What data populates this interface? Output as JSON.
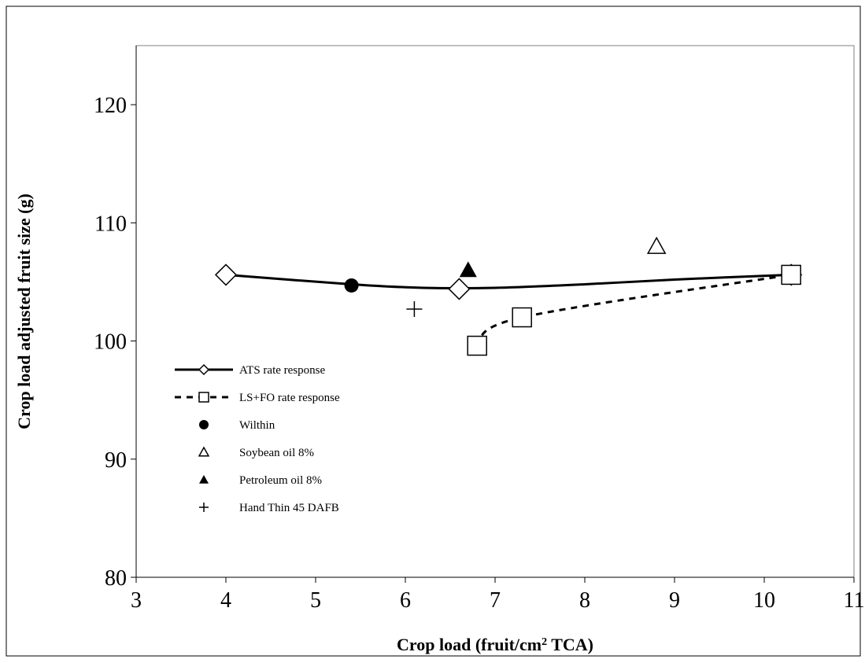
{
  "chart_data": {
    "type": "scatter",
    "title": "",
    "xlabel": "Crop load (fruit/cm",
    "xlabel_sup": "2",
    "xlabel_tail": " TCA)",
    "ylabel": "Crop load adjusted fruit size (g)",
    "xlim": [
      3,
      11
    ],
    "ylim": [
      80,
      125
    ],
    "x_ticks": [
      3,
      4,
      5,
      6,
      7,
      8,
      9,
      10,
      11
    ],
    "y_ticks": [
      80,
      90,
      100,
      110,
      120
    ],
    "grid": false,
    "legend_position": "left",
    "series": [
      {
        "name": "ATS rate response",
        "marker": "diamond-open",
        "line": "solid",
        "points": [
          {
            "x": 4.0,
            "y": 105.6
          },
          {
            "x": 6.6,
            "y": 104.4
          },
          {
            "x": 10.3,
            "y": 105.6
          }
        ],
        "curve": [
          {
            "x": 4.0,
            "y": 105.6
          },
          {
            "x": 5.4,
            "y": 104.8
          },
          {
            "x": 6.2,
            "y": 104.5
          },
          {
            "x": 7.0,
            "y": 104.5
          },
          {
            "x": 8.0,
            "y": 104.8
          },
          {
            "x": 9.0,
            "y": 105.2
          },
          {
            "x": 10.3,
            "y": 105.6
          }
        ]
      },
      {
        "name": "LS+FO rate response",
        "marker": "square-open",
        "line": "dashed",
        "points": [
          {
            "x": 6.8,
            "y": 99.6
          },
          {
            "x": 7.3,
            "y": 102.0
          },
          {
            "x": 10.3,
            "y": 105.6
          }
        ],
        "curve": [
          {
            "x": 6.8,
            "y": 99.6
          },
          {
            "x": 7.3,
            "y": 102.0
          },
          {
            "x": 10.3,
            "y": 105.6
          }
        ]
      },
      {
        "name": "Wilthin",
        "marker": "circle-filled",
        "line": "none",
        "points": [
          {
            "x": 5.4,
            "y": 104.7
          }
        ]
      },
      {
        "name": "Soybean oil 8%",
        "marker": "triangle-open",
        "line": "none",
        "points": [
          {
            "x": 8.8,
            "y": 108.0
          }
        ]
      },
      {
        "name": "Petroleum oil 8%",
        "marker": "triangle-filled",
        "line": "none",
        "points": [
          {
            "x": 6.7,
            "y": 106.0
          }
        ]
      },
      {
        "name": "Hand Thin 45 DAFB",
        "marker": "plus",
        "line": "none",
        "points": [
          {
            "x": 6.1,
            "y": 102.7
          }
        ]
      }
    ]
  }
}
